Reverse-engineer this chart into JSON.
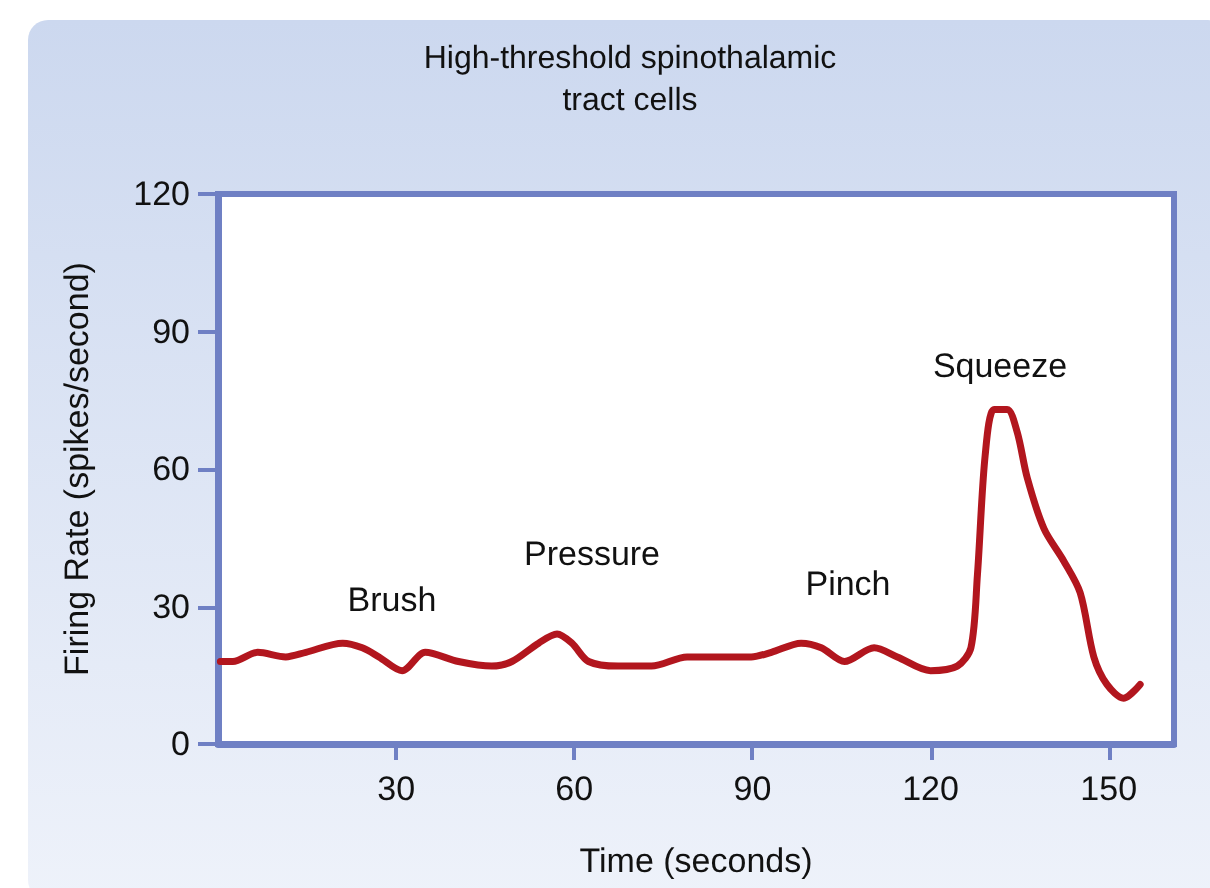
{
  "chart_data": {
    "type": "line",
    "title": "High-threshold spinothalamic\ntract cells",
    "xlabel": "Time (seconds)",
    "ylabel": "Firing Rate (spikes/second)",
    "xlim": [
      0,
      161
    ],
    "xticks": [
      30,
      60,
      90,
      120,
      150
    ],
    "ylim": [
      0,
      120
    ],
    "yticks": [
      0,
      30,
      60,
      90,
      120
    ],
    "grid": false,
    "marker": "none",
    "line_style": "solid",
    "series": [
      {
        "color": "#b2161e",
        "x": [
          0.4,
          2.5,
          6.7,
          11.4,
          14.8,
          21,
          24.3,
          27.1,
          31,
          34.9,
          40.5,
          46.1,
          49.5,
          54,
          57.1,
          59.6,
          62.4,
          67.4,
          73,
          79,
          83,
          89.8,
          93.2,
          98.2,
          101.6,
          105.5,
          110.5,
          114.4,
          120,
          124.5,
          126.8,
          127.9,
          129.2,
          130.7,
          132.9,
          134.6,
          136.3,
          139.1,
          142.4,
          145.2,
          147.5,
          149.7,
          152.5,
          155.3
        ],
        "values": [
          18,
          18,
          20,
          19,
          20,
          22,
          21,
          19,
          16,
          20,
          18,
          17,
          18,
          22,
          24,
          22,
          18,
          17,
          17,
          19,
          19,
          19,
          20,
          22,
          21,
          18,
          21,
          19,
          16,
          17,
          21,
          37,
          63,
          73,
          73,
          68,
          58,
          47,
          40,
          33,
          19,
          13,
          10,
          13
        ]
      }
    ],
    "annotations": [
      "Brush",
      "Pressure",
      "Pinch",
      "Squeeze"
    ]
  }
}
